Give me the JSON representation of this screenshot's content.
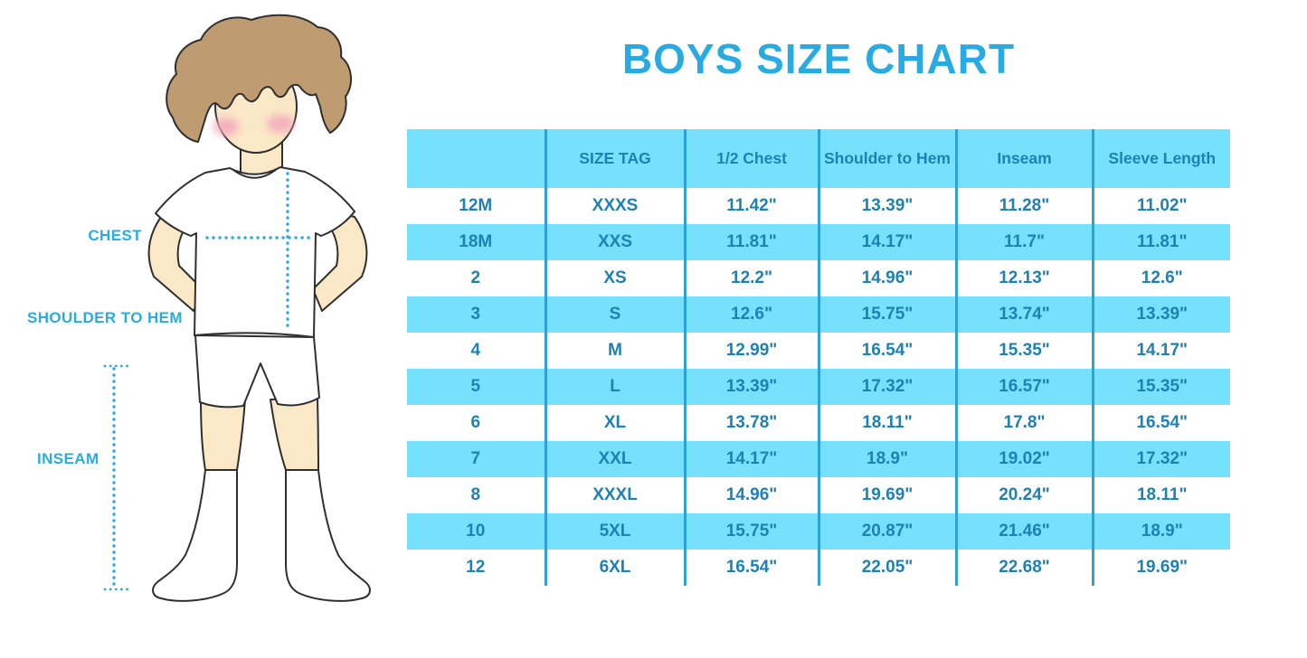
{
  "title": "BOYS SIZE CHART",
  "figure": {
    "illustration": "boy-outline-with-measurement-guides",
    "labels": {
      "chest": "CHEST",
      "shoulder_to_hem": "SHOULDER TO HEM",
      "inseam": "INSEAM"
    }
  },
  "colors": {
    "accent_blue": "#29ABE2",
    "table_text_blue": "#1F81B3",
    "table_stripe_blue": "#76E1FC",
    "table_divider_blue": "#2CA3D4",
    "hair_brown": "#BE9B70",
    "skin_tone": "#FBE8C6",
    "cheek_pink": "#F2A8BC"
  },
  "chart_data": {
    "type": "table",
    "title": "BOYS SIZE CHART",
    "columns": [
      "",
      "SIZE TAG",
      "1/2 Chest",
      "Shoulder to Hem",
      "Inseam",
      "Sleeve Length"
    ],
    "rows": [
      [
        "12M",
        "XXXS",
        "11.42\"",
        "13.39\"",
        "11.28\"",
        "11.02\""
      ],
      [
        "18M",
        "XXS",
        "11.81\"",
        "14.17\"",
        "11.7\"",
        "11.81\""
      ],
      [
        "2",
        "XS",
        "12.2\"",
        "14.96\"",
        "12.13\"",
        "12.6\""
      ],
      [
        "3",
        "S",
        "12.6\"",
        "15.75\"",
        "13.74\"",
        "13.39\""
      ],
      [
        "4",
        "M",
        "12.99\"",
        "16.54\"",
        "15.35\"",
        "14.17\""
      ],
      [
        "5",
        "L",
        "13.39\"",
        "17.32\"",
        "16.57\"",
        "15.35\""
      ],
      [
        "6",
        "XL",
        "13.78\"",
        "18.11\"",
        "17.8\"",
        "16.54\""
      ],
      [
        "7",
        "XXL",
        "14.17\"",
        "18.9\"",
        "19.02\"",
        "17.32\""
      ],
      [
        "8",
        "XXXL",
        "14.96\"",
        "19.69\"",
        "20.24\"",
        "18.11\""
      ],
      [
        "10",
        "5XL",
        "15.75\"",
        "20.87\"",
        "21.46\"",
        "18.9\""
      ],
      [
        "12",
        "6XL",
        "16.54\"",
        "22.05\"",
        "22.68\"",
        "19.69\""
      ]
    ],
    "stripe_rows": [
      1,
      3,
      5,
      7,
      9
    ],
    "layout": {
      "stripe_style": "alternating light blue",
      "grid": "vertical column dividers only"
    }
  }
}
